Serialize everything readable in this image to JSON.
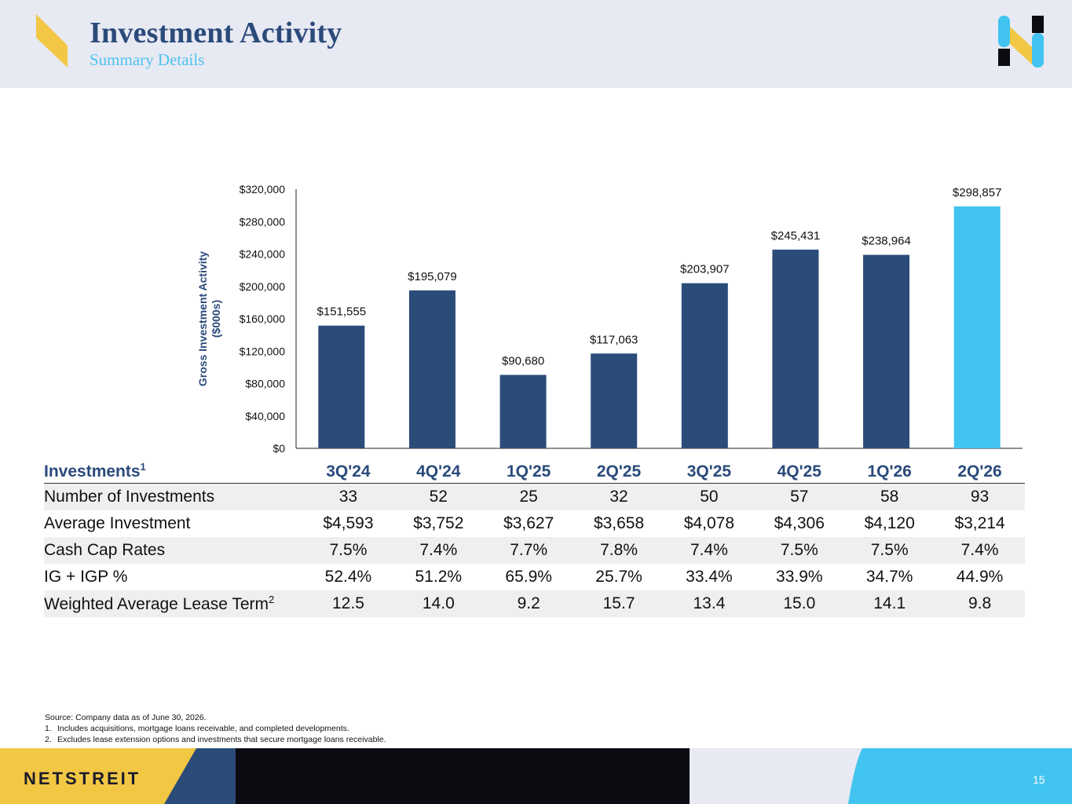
{
  "header": {
    "title": "Investment Activity",
    "subtitle": "Summary Details"
  },
  "colors": {
    "bar": "#2b4c79",
    "highlight": "#42c4f0",
    "title": "#2a4a7a",
    "accent_yellow": "#f2c744",
    "footer_dark": "#0b0b12"
  },
  "chart_data": {
    "type": "bar",
    "categories": [
      "3Q'24",
      "4Q'24",
      "1Q'25",
      "2Q'25",
      "3Q'25",
      "4Q'25",
      "1Q'26",
      "2Q'26"
    ],
    "values": [
      151555,
      195079,
      90680,
      117063,
      203907,
      245431,
      238964,
      298857
    ],
    "data_labels": [
      "$151,555",
      "$195,079",
      "$90,680",
      "$117,063",
      "$203,907",
      "$245,431",
      "$238,964",
      "$298,857"
    ],
    "highlight_index": 7,
    "ylabel_line1": "Gross Investment Activity",
    "ylabel_line2": "($000s)",
    "ylim": [
      0,
      320000
    ],
    "yticks": [
      0,
      40000,
      80000,
      120000,
      160000,
      200000,
      240000,
      280000,
      320000
    ],
    "ytick_labels": [
      "$0",
      "$40,000",
      "$80,000",
      "$120,000",
      "$160,000",
      "$200,000",
      "$240,000",
      "$280,000",
      "$320,000"
    ],
    "grid": false,
    "legend": "none"
  },
  "table": {
    "header_label": "Investments",
    "header_sup": "1",
    "columns": [
      "3Q'24",
      "4Q'24",
      "1Q'25",
      "2Q'25",
      "3Q'25",
      "4Q'25",
      "1Q'26",
      "2Q'26"
    ],
    "rows": [
      {
        "label": "Number of Investments",
        "sup": "",
        "values": [
          "33",
          "52",
          "25",
          "32",
          "50",
          "57",
          "58",
          "93"
        ]
      },
      {
        "label": "Average Investment",
        "sup": "",
        "values": [
          "$4,593",
          "$3,752",
          "$3,627",
          "$3,658",
          "$4,078",
          "$4,306",
          "$4,120",
          "$3,214"
        ]
      },
      {
        "label": "Cash Cap Rates",
        "sup": "",
        "values": [
          "7.5%",
          "7.4%",
          "7.7%",
          "7.8%",
          "7.4%",
          "7.5%",
          "7.5%",
          "7.4%"
        ]
      },
      {
        "label": "IG + IGP %",
        "sup": "",
        "values": [
          "52.4%",
          "51.2%",
          "65.9%",
          "25.7%",
          "33.4%",
          "33.9%",
          "34.7%",
          "44.9%"
        ]
      },
      {
        "label": "Weighted Average Lease Term",
        "sup": "2",
        "values": [
          "12.5",
          "14.0",
          "9.2",
          "15.7",
          "13.4",
          "15.0",
          "14.1",
          "9.8"
        ]
      }
    ]
  },
  "notes": {
    "source": "Source: Company data as of June 30, 2026.",
    "items": [
      {
        "num": "1.",
        "text": "Includes acquisitions, mortgage loans receivable, and completed developments."
      },
      {
        "num": "2.",
        "text": "Excludes lease extension options and investments that secure mortgage loans receivable."
      }
    ]
  },
  "footer": {
    "brand": "NETSTREIT",
    "page": "15"
  }
}
